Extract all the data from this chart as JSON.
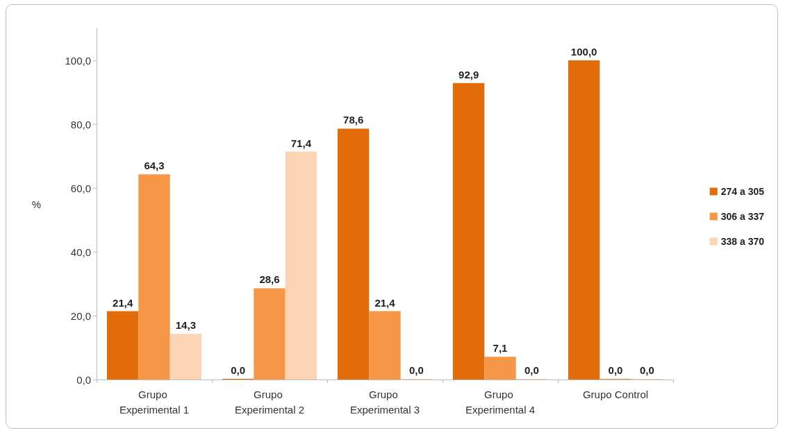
{
  "chart_data": {
    "type": "bar",
    "ylabel": "%",
    "categories": [
      "Grupo Experimental 1",
      "Grupo Experimental 2",
      "Grupo Experimental 3",
      "Grupo Experimental 4",
      "Grupo Control"
    ],
    "series": [
      {
        "name": "274 a 305",
        "color": "#e36c0a",
        "values": [
          21.4,
          0.0,
          78.6,
          92.9,
          100.0
        ],
        "value_labels": [
          "21,4",
          "0,0",
          "78,6",
          "92,9",
          "100,0"
        ]
      },
      {
        "name": "306 a 337",
        "color": "#f79646",
        "values": [
          64.3,
          28.6,
          21.4,
          7.1,
          0.0
        ],
        "value_labels": [
          "64,3",
          "28,6",
          "21,4",
          "7,1",
          "0,0"
        ]
      },
      {
        "name": "338 a 370",
        "color": "#fbd4b4",
        "values": [
          14.3,
          71.4,
          0.0,
          0.0,
          0.0
        ],
        "value_labels": [
          "14,3",
          "71,4",
          "0,0",
          "0,0",
          "0,0"
        ]
      }
    ],
    "ylim": [
      0,
      110
    ],
    "yticks": [
      {
        "value": 0,
        "label": "0,0"
      },
      {
        "value": 20,
        "label": "20,0"
      },
      {
        "value": 40,
        "label": "40,0"
      },
      {
        "value": 60,
        "label": "60,0"
      },
      {
        "value": 80,
        "label": "80,0"
      },
      {
        "value": 100,
        "label": "100,0"
      }
    ],
    "grid": false,
    "legend": "right"
  }
}
